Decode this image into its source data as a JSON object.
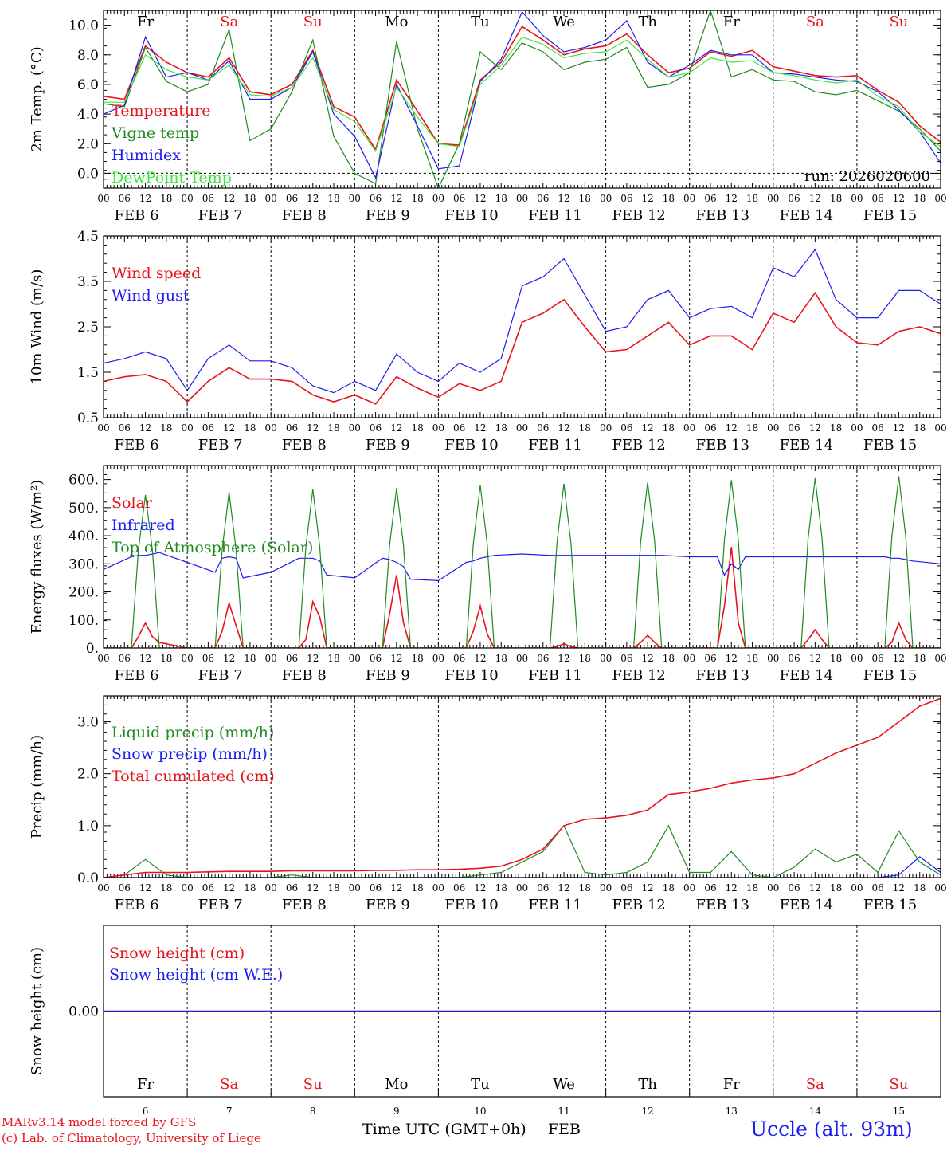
{
  "run_label": "run: 2026020600",
  "footer": {
    "credit_line1": "MARv3.14 model forced by GFS",
    "credit_line2": "(c) Lab. of Climatology, University of Liege",
    "xlabel": "Time UTC (GMT+0h)",
    "month": "FEB",
    "station": "Uccle (alt. 93m)"
  },
  "colors": {
    "red": "#e8141c",
    "blue": "#1c1cf0",
    "green": "#1f8a1f",
    "lightgreen": "#3ee83e"
  },
  "days": [
    {
      "abbr": "Fr",
      "date": "6",
      "weekend": false
    },
    {
      "abbr": "Sa",
      "date": "7",
      "weekend": true
    },
    {
      "abbr": "Su",
      "date": "8",
      "weekend": true
    },
    {
      "abbr": "Mo",
      "date": "9",
      "weekend": false
    },
    {
      "abbr": "Tu",
      "date": "10",
      "weekend": false
    },
    {
      "abbr": "We",
      "date": "11",
      "weekend": false
    },
    {
      "abbr": "Th",
      "date": "12",
      "weekend": false
    },
    {
      "abbr": "Fr",
      "date": "13",
      "weekend": false
    },
    {
      "abbr": "Sa",
      "date": "14",
      "weekend": true
    },
    {
      "abbr": "Su",
      "date": "15",
      "weekend": true
    }
  ],
  "hour_ticks": [
    "00",
    "06",
    "12",
    "18"
  ],
  "end_tick": "00",
  "chart_data": [
    {
      "id": "temp",
      "type": "line",
      "ylabel": "2m Temp. (°C)",
      "ylim": [
        -1.0,
        11.0
      ],
      "yticks": [
        "0.0",
        "2.0",
        "4.0",
        "6.0",
        "8.0",
        "10.0"
      ],
      "zero_line": true,
      "x_hours": [
        0,
        6,
        12,
        18,
        24,
        30,
        36,
        42,
        48,
        54,
        60,
        66,
        72,
        78,
        84,
        90,
        96,
        102,
        108,
        114,
        120,
        126,
        132,
        138,
        144,
        150,
        156,
        162,
        168,
        174,
        180,
        186,
        192,
        198,
        204,
        210,
        216,
        222,
        228,
        234,
        240
      ],
      "series": [
        {
          "name": "Temperature",
          "color": "red",
          "values": [
            5.2,
            5.0,
            8.6,
            7.5,
            6.8,
            6.5,
            7.8,
            5.5,
            5.3,
            6.0,
            8.3,
            4.5,
            3.8,
            1.6,
            6.3,
            4.2,
            2.0,
            1.9,
            6.3,
            7.5,
            9.9,
            9.0,
            8.0,
            8.4,
            8.6,
            9.4,
            8.0,
            6.8,
            7.1,
            8.2,
            7.9,
            8.3,
            7.2,
            6.9,
            6.6,
            6.5,
            6.6,
            5.6,
            4.8,
            3.2,
            2.1
          ]
        },
        {
          "name": "Vigne temp",
          "color": "green",
          "values": [
            4.7,
            4.5,
            8.5,
            6.2,
            5.5,
            6.0,
            9.7,
            2.2,
            3.0,
            5.5,
            9.0,
            2.5,
            0.0,
            -0.7,
            8.9,
            3.0,
            -1.0,
            2.0,
            8.2,
            7.0,
            8.8,
            8.2,
            7.0,
            7.5,
            7.7,
            8.5,
            5.8,
            6.0,
            6.8,
            11.0,
            6.5,
            7.0,
            6.3,
            6.2,
            5.5,
            5.3,
            5.6,
            4.9,
            4.2,
            3.0,
            1.5
          ]
        },
        {
          "name": "Humidex",
          "color": "blue",
          "values": [
            4.0,
            4.6,
            9.2,
            6.5,
            6.8,
            6.3,
            7.6,
            5.0,
            5.0,
            5.8,
            8.2,
            4.0,
            2.5,
            -0.3,
            6.0,
            3.2,
            0.3,
            0.5,
            6.2,
            7.7,
            10.9,
            9.3,
            8.2,
            8.5,
            9.0,
            10.3,
            7.5,
            6.5,
            7.3,
            8.3,
            8.0,
            8.0,
            6.8,
            6.7,
            6.5,
            6.3,
            6.2,
            5.5,
            4.3,
            2.8,
            0.7
          ]
        },
        {
          "name": "DewPoint Temp",
          "color": "lightgreen",
          "values": [
            4.8,
            4.8,
            8.0,
            7.0,
            6.5,
            6.3,
            7.3,
            5.3,
            5.2,
            5.8,
            7.8,
            4.3,
            3.5,
            1.5,
            5.8,
            3.8,
            2.0,
            1.8,
            6.0,
            7.3,
            9.2,
            8.7,
            7.8,
            8.1,
            8.2,
            9.0,
            7.7,
            6.5,
            6.8,
            7.8,
            7.5,
            7.6,
            6.8,
            6.6,
            6.3,
            6.1,
            6.3,
            5.2,
            4.5,
            2.8,
            1.8
          ]
        }
      ]
    },
    {
      "id": "wind",
      "type": "line",
      "ylabel": "10m Wind (m/s)",
      "ylim": [
        0.5,
        4.5
      ],
      "yticks": [
        "0.5",
        "1.5",
        "2.5",
        "3.5",
        "4.5"
      ],
      "x_hours": [
        0,
        6,
        12,
        18,
        24,
        30,
        36,
        42,
        48,
        54,
        60,
        66,
        72,
        78,
        84,
        90,
        96,
        102,
        108,
        114,
        120,
        126,
        132,
        138,
        144,
        150,
        156,
        162,
        168,
        174,
        180,
        186,
        192,
        198,
        204,
        210,
        216,
        222,
        228,
        234,
        240
      ],
      "series": [
        {
          "name": "Wind speed",
          "color": "red",
          "values": [
            1.3,
            1.4,
            1.45,
            1.3,
            0.85,
            1.3,
            1.6,
            1.35,
            1.35,
            1.3,
            1.0,
            0.85,
            1.0,
            0.8,
            1.4,
            1.15,
            0.95,
            1.25,
            1.1,
            1.3,
            2.6,
            2.8,
            3.1,
            2.5,
            1.95,
            2.0,
            2.3,
            2.6,
            2.1,
            2.3,
            2.3,
            2.0,
            2.8,
            2.6,
            3.25,
            2.5,
            2.15,
            2.1,
            2.4,
            2.5,
            2.35
          ]
        },
        {
          "name": "Wind gust",
          "color": "blue",
          "values": [
            1.7,
            1.8,
            1.95,
            1.8,
            1.1,
            1.8,
            2.1,
            1.75,
            1.75,
            1.6,
            1.2,
            1.05,
            1.3,
            1.1,
            1.9,
            1.5,
            1.3,
            1.7,
            1.5,
            1.8,
            3.4,
            3.6,
            4.0,
            3.2,
            2.4,
            2.5,
            3.1,
            3.3,
            2.7,
            2.9,
            2.95,
            2.7,
            3.8,
            3.6,
            4.2,
            3.1,
            2.7,
            2.7,
            3.3,
            3.3,
            3.0
          ]
        }
      ]
    },
    {
      "id": "energy",
      "type": "line",
      "ylabel": "Energy fluxes (W/m²)",
      "ylim": [
        0,
        650
      ],
      "yticks": [
        "0.",
        "100.",
        "200.",
        "300.",
        "400.",
        "500.",
        "600."
      ],
      "x_hours": [
        0,
        8,
        10,
        12,
        14,
        16,
        24,
        32,
        34,
        36,
        38,
        40,
        48,
        56,
        58,
        60,
        62,
        64,
        72,
        80,
        82,
        84,
        86,
        88,
        96,
        104,
        106,
        108,
        110,
        112,
        120,
        128,
        130,
        132,
        134,
        136,
        144,
        152,
        154,
        156,
        158,
        160,
        168,
        176,
        178,
        180,
        182,
        184,
        192,
        200,
        202,
        204,
        206,
        208,
        216,
        224,
        226,
        228,
        230,
        232,
        240
      ],
      "series": [
        {
          "name": "Solar",
          "color": "red",
          "values": [
            0,
            0,
            40,
            90,
            40,
            20,
            0,
            0,
            60,
            160,
            80,
            0,
            0,
            0,
            30,
            165,
            110,
            0,
            0,
            0,
            120,
            260,
            90,
            0,
            0,
            0,
            60,
            150,
            50,
            0,
            0,
            0,
            5,
            15,
            5,
            0,
            0,
            0,
            20,
            45,
            20,
            0,
            0,
            0,
            150,
            360,
            90,
            0,
            0,
            0,
            30,
            65,
            30,
            0,
            0,
            0,
            20,
            90,
            30,
            0,
            0
          ]
        },
        {
          "name": "Infrared",
          "color": "blue",
          "values": [
            280,
            325,
            330,
            330,
            335,
            340,
            305,
            270,
            320,
            325,
            320,
            250,
            270,
            320,
            320,
            320,
            310,
            260,
            250,
            320,
            315,
            305,
            290,
            245,
            240,
            305,
            310,
            320,
            325,
            330,
            335,
            330,
            330,
            330,
            330,
            330,
            330,
            330,
            330,
            330,
            330,
            330,
            325,
            325,
            260,
            300,
            280,
            325,
            325,
            325,
            325,
            325,
            325,
            325,
            325,
            325,
            320,
            320,
            315,
            310,
            300
          ]
        },
        {
          "name": "Top of Atmosphere (Solar)",
          "color": "green",
          "values": [
            0,
            0,
            350,
            545,
            350,
            0,
            0,
            0,
            350,
            555,
            350,
            0,
            0,
            0,
            360,
            565,
            360,
            0,
            0,
            0,
            365,
            570,
            365,
            0,
            0,
            0,
            370,
            580,
            370,
            0,
            0,
            0,
            375,
            585,
            375,
            0,
            0,
            0,
            380,
            590,
            380,
            0,
            0,
            0,
            385,
            598,
            385,
            0,
            0,
            0,
            390,
            605,
            390,
            0,
            0,
            0,
            395,
            612,
            395,
            0,
            0
          ]
        }
      ]
    },
    {
      "id": "precip",
      "type": "line",
      "ylabel": "Precip (mm/h)",
      "ylim": [
        0,
        3.5
      ],
      "yticks": [
        "0.0",
        "1.0",
        "2.0",
        "3.0"
      ],
      "x_hours": [
        0,
        6,
        12,
        18,
        24,
        30,
        36,
        42,
        48,
        54,
        60,
        66,
        72,
        78,
        84,
        90,
        96,
        102,
        108,
        114,
        120,
        126,
        132,
        138,
        144,
        150,
        156,
        162,
        168,
        174,
        180,
        186,
        192,
        198,
        204,
        210,
        216,
        222,
        228,
        234,
        240
      ],
      "series": [
        {
          "name": "Liquid precip (mm/h)",
          "color": "green",
          "values": [
            0,
            0.05,
            0.35,
            0.05,
            0,
            0,
            0,
            0,
            0,
            0.05,
            0,
            0,
            0,
            0,
            0,
            0,
            0,
            0,
            0.05,
            0.1,
            0.3,
            0.5,
            1.0,
            0.1,
            0.05,
            0.1,
            0.3,
            1.0,
            0.1,
            0.1,
            0.5,
            0.05,
            0,
            0.2,
            0.55,
            0.3,
            0.45,
            0.1,
            0.9,
            0.3,
            0.05
          ]
        },
        {
          "name": "Snow precip (mm/h)",
          "color": "blue",
          "values": [
            0,
            0,
            0,
            0,
            0,
            0,
            0,
            0,
            0,
            0,
            0,
            0,
            0,
            0,
            0,
            0,
            0,
            0,
            0,
            0,
            0,
            0,
            0,
            0,
            0,
            0,
            0,
            0,
            0,
            0,
            0,
            0,
            0,
            0,
            0,
            0,
            0,
            0,
            0.05,
            0.4,
            0.1
          ]
        },
        {
          "name": "Total cumulated (cm)",
          "color": "red",
          "values": [
            0,
            0.05,
            0.1,
            0.1,
            0.1,
            0.11,
            0.12,
            0.12,
            0.12,
            0.13,
            0.13,
            0.13,
            0.13,
            0.14,
            0.14,
            0.15,
            0.15,
            0.16,
            0.18,
            0.22,
            0.35,
            0.55,
            1.0,
            1.12,
            1.15,
            1.2,
            1.3,
            1.6,
            1.65,
            1.72,
            1.82,
            1.88,
            1.92,
            2.0,
            2.2,
            2.4,
            2.55,
            2.7,
            3.0,
            3.3,
            3.45
          ]
        }
      ]
    },
    {
      "id": "snow",
      "type": "line",
      "ylabel": "Snow height (cm)",
      "ylim": [
        -1,
        1
      ],
      "yticks": [
        "0.00"
      ],
      "x_hours": [
        0,
        240
      ],
      "series": [
        {
          "name": "Snow height (cm)",
          "color": "red",
          "values": [
            0,
            0
          ]
        },
        {
          "name": "Snow height (cm W.E.)",
          "color": "blue",
          "values": [
            0,
            0
          ]
        }
      ]
    }
  ]
}
